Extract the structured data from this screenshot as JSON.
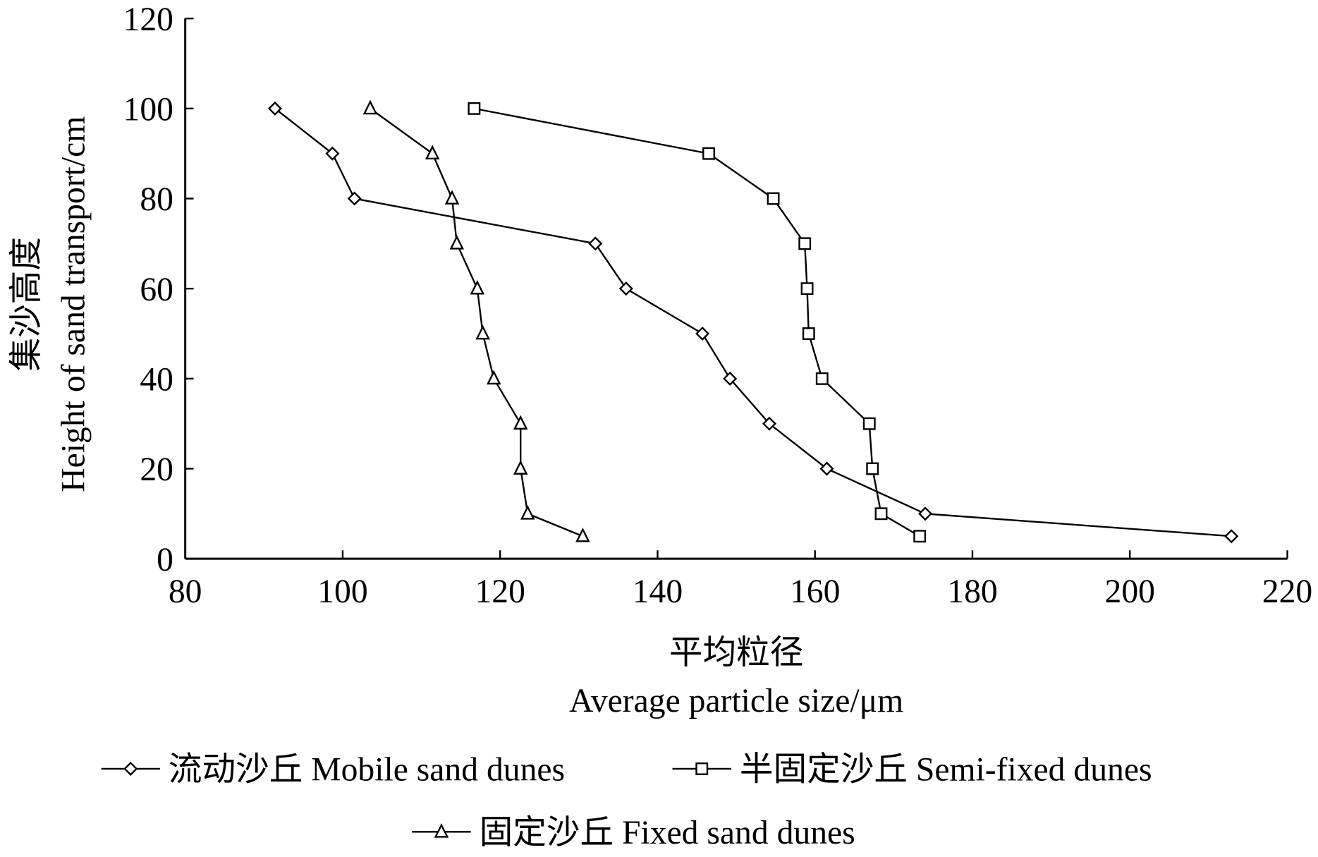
{
  "chart_data": {
    "type": "line",
    "xlabel_cn": "平均粒径",
    "xlabel": "Average particle size/μm",
    "ylabel_cn": "集沙高度",
    "ylabel": "Height of sand transport/cm",
    "xlim": [
      80,
      220
    ],
    "ylim": [
      0,
      120
    ],
    "xticks": [
      "80",
      "100",
      "120",
      "140",
      "160",
      "180",
      "200",
      "220"
    ],
    "yticks": [
      "0",
      "20",
      "40",
      "60",
      "80",
      "100",
      "120"
    ],
    "grid": false,
    "legend_placement": "bottom",
    "series": [
      {
        "name": "流动沙丘 Mobile sand dunes",
        "marker": "diamond",
        "points": [
          [
            91.4,
            100
          ],
          [
            98.7,
            90
          ],
          [
            101.5,
            80
          ],
          [
            132.1,
            70
          ],
          [
            136.0,
            60
          ],
          [
            145.7,
            50
          ],
          [
            149.2,
            40
          ],
          [
            154.2,
            30
          ],
          [
            161.5,
            20
          ],
          [
            174.0,
            10
          ],
          [
            212.9,
            5
          ]
        ]
      },
      {
        "name": "半固定沙丘 Semi-fixed dunes",
        "marker": "square",
        "points": [
          [
            116.7,
            100
          ],
          [
            146.5,
            90
          ],
          [
            154.7,
            80
          ],
          [
            158.7,
            70
          ],
          [
            159.0,
            60
          ],
          [
            159.2,
            50
          ],
          [
            160.9,
            40
          ],
          [
            166.9,
            30
          ],
          [
            167.3,
            20
          ],
          [
            168.4,
            10
          ],
          [
            173.3,
            5
          ]
        ]
      },
      {
        "name": "固定沙丘 Fixed sand dunes",
        "marker": "triangle",
        "points": [
          [
            103.5,
            100
          ],
          [
            111.4,
            90
          ],
          [
            113.9,
            80
          ],
          [
            114.5,
            70
          ],
          [
            117.1,
            60
          ],
          [
            117.8,
            50
          ],
          [
            119.2,
            40
          ],
          [
            122.6,
            30
          ],
          [
            122.6,
            20
          ],
          [
            123.5,
            10
          ],
          [
            130.5,
            5
          ]
        ]
      }
    ]
  }
}
